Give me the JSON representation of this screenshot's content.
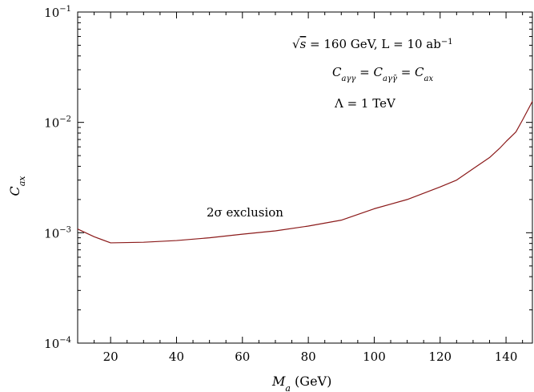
{
  "chart_data": {
    "type": "line",
    "title": "",
    "xlabel": "M_a (GeV)",
    "ylabel": "C_ax",
    "x_scale": "linear",
    "y_scale": "log",
    "xlim": [
      10,
      148
    ],
    "ylim": [
      0.0001,
      0.1
    ],
    "grid": false,
    "x_ticks": [
      20,
      40,
      60,
      80,
      100,
      120,
      140
    ],
    "x_tick_labels": [
      "20",
      "40",
      "60",
      "80",
      "100",
      "120",
      "140"
    ],
    "y_ticks": [
      0.0001,
      0.001,
      0.01,
      0.1
    ],
    "y_tick_labels": [
      {
        "base": "10",
        "exp": "−4"
      },
      {
        "base": "10",
        "exp": "−3"
      },
      {
        "base": "10",
        "exp": "−2"
      },
      {
        "base": "10",
        "exp": "−1"
      }
    ],
    "series": [
      {
        "color": "#8b1a1a",
        "x": [
          10,
          15,
          20,
          30,
          40,
          50,
          60,
          70,
          80,
          90,
          100,
          110,
          120,
          125,
          130,
          135,
          138,
          140,
          143,
          145,
          148
        ],
        "y": [
          0.00108,
          0.00092,
          0.00081,
          0.00082,
          0.00085,
          0.0009,
          0.00097,
          0.00104,
          0.00115,
          0.0013,
          0.00165,
          0.002,
          0.0026,
          0.003,
          0.0038,
          0.0048,
          0.0058,
          0.0067,
          0.0082,
          0.0105,
          0.0155
        ]
      }
    ],
    "annotations": {
      "line1": {
        "sqrt": "√",
        "s": "s",
        "eq": " = 160  GeV,  L = 10  ab",
        "exp": "−1"
      },
      "line2": {
        "lhs": "C",
        "lhs_sub": "aγγ",
        "eq1": " = ",
        "mid": "C",
        "mid_sub": "aγγ̄",
        "eq2": " = ",
        "rhs": "C",
        "rhs_sub": "ax"
      },
      "line3": "Λ = 1  TeV",
      "region_label": "2σ  exclusion"
    },
    "axis_titles": {
      "x_main": "M",
      "x_sub": "a",
      "x_unit": " (GeV)",
      "y_main": "C",
      "y_sub": "ax"
    }
  }
}
